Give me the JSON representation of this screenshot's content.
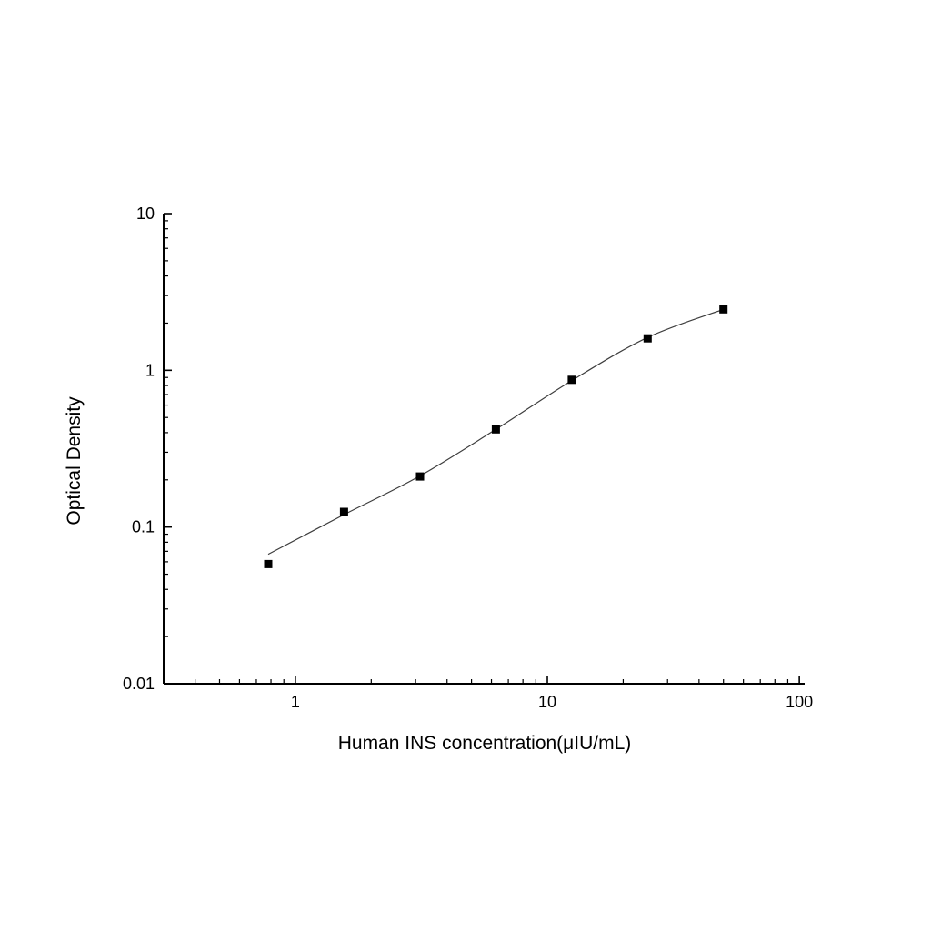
{
  "figure": {
    "background": "#ffffff"
  },
  "chart_data": {
    "type": "scatter",
    "title": "",
    "xlabel": "Human INS concentration(μIU/mL)",
    "ylabel": "Optical Density",
    "x_scale": "log",
    "y_scale": "log",
    "xlim": [
      0.3,
      105
    ],
    "ylim": [
      0.01,
      10
    ],
    "grid": false,
    "legend": null,
    "x_ticks": [
      {
        "value": 1,
        "label": "1"
      },
      {
        "value": 10,
        "label": "10"
      },
      {
        "value": 100,
        "label": "100"
      }
    ],
    "y_ticks": [
      {
        "value": 0.01,
        "label": "0.01"
      },
      {
        "value": 0.1,
        "label": "0.1"
      },
      {
        "value": 1,
        "label": "1"
      },
      {
        "value": 10,
        "label": "10"
      }
    ],
    "points": [
      {
        "x": 0.78,
        "y": 0.058
      },
      {
        "x": 1.56,
        "y": 0.125
      },
      {
        "x": 3.125,
        "y": 0.21
      },
      {
        "x": 6.25,
        "y": 0.42
      },
      {
        "x": 12.5,
        "y": 0.87
      },
      {
        "x": 25,
        "y": 1.6
      },
      {
        "x": 50,
        "y": 2.45
      }
    ],
    "fit_curve": [
      {
        "x": 0.78,
        "y": 0.067
      },
      {
        "x": 1.56,
        "y": 0.12
      },
      {
        "x": 3.125,
        "y": 0.212
      },
      {
        "x": 6.25,
        "y": 0.42
      },
      {
        "x": 12.5,
        "y": 0.86
      },
      {
        "x": 25,
        "y": 1.62
      },
      {
        "x": 50,
        "y": 2.45
      }
    ],
    "marker": {
      "shape": "square",
      "size": 9,
      "color": "#000000"
    },
    "line_color": "#3d3d3d"
  }
}
